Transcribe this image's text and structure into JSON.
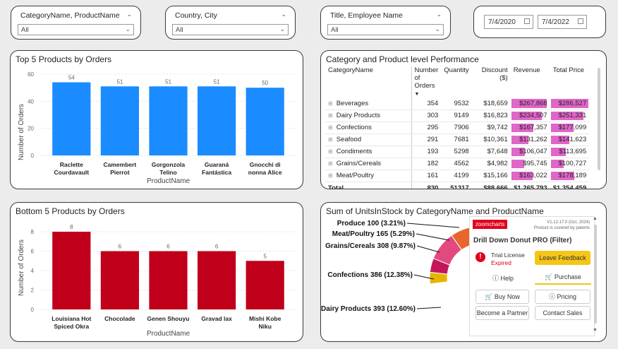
{
  "slicers": [
    {
      "label": "CategoryName, ProductName",
      "value": "All"
    },
    {
      "label": "Country, City",
      "value": "All"
    },
    {
      "label": "Title, Employee Name",
      "value": "All"
    }
  ],
  "dates": {
    "start": "7/4/2020",
    "end": "7/4/2022"
  },
  "top5": {
    "title": "Top 5 Products by Orders",
    "ylabel": "Number of Orders",
    "xlabel": "ProductName",
    "color": "#1a8cff",
    "ticks": [
      "60",
      "40",
      "20",
      "0"
    ],
    "labels": [
      [
        "Raclette",
        "Courdavault"
      ],
      [
        "Camembert",
        "Pierrot"
      ],
      [
        "Gorgonzola",
        "Telino"
      ],
      [
        "Guaraná",
        "Fantástica"
      ],
      [
        "Gnocchi di",
        "nonna Alice"
      ]
    ],
    "value_labels": [
      "54",
      "51",
      "51",
      "51",
      "50"
    ]
  },
  "bottom5": {
    "title": "Bottom 5 Products by Orders",
    "ylabel": "Number of Orders",
    "xlabel": "ProductName",
    "color": "#c0001a",
    "ticks": [
      "8",
      "6",
      "4",
      "2",
      "0"
    ],
    "labels": [
      [
        "Louisiana Hot",
        "Spiced Okra"
      ],
      [
        "Chocolade"
      ],
      [
        "Genen Shouyu"
      ],
      [
        "Gravad lax"
      ],
      [
        "Mishi Kobe",
        "Niku"
      ]
    ],
    "value_labels": [
      "8",
      "6",
      "6",
      "6",
      "5"
    ]
  },
  "chart_data": [
    {
      "type": "bar",
      "title": "Top 5 Products by Orders",
      "xlabel": "ProductName",
      "ylabel": "Number of Orders",
      "categories": [
        "Raclette Courdavault",
        "Camembert Pierrot",
        "Gorgonzola Telino",
        "Guaraná Fantástica",
        "Gnocchi di nonna Alice"
      ],
      "values": [
        54,
        51,
        51,
        51,
        50
      ],
      "ylim": [
        0,
        60
      ],
      "grid": true
    },
    {
      "type": "bar",
      "title": "Bottom 5 Products by Orders",
      "xlabel": "ProductName",
      "ylabel": "Number of Orders",
      "categories": [
        "Louisiana Hot Spiced Okra",
        "Chocolade",
        "Genen Shouyu",
        "Gravad lax",
        "Mishi Kobe Niku"
      ],
      "values": [
        8,
        6,
        6,
        6,
        5
      ],
      "ylim": [
        0,
        8
      ],
      "grid": true
    },
    {
      "type": "pie",
      "title": "Sum of UnitsInStock by CategoryName and ProductName",
      "categories": [
        "Produce",
        "Meat/Poultry",
        "Grains/Cereals",
        "Confections",
        "Dairy Products"
      ],
      "values": [
        100,
        165,
        308,
        386,
        393
      ],
      "labels": [
        "Produce 100 (3.21%)",
        "Meat/Poultry 165 (5.29%)",
        "Grains/Cereals 308 (9.87%)",
        "Confections 386 (12.38%)",
        "Dairy Products 393 (12.60%)"
      ]
    }
  ],
  "matrix": {
    "title": "Category and Product level Performance",
    "headers": [
      "CategoryName",
      "Number of Orders",
      "Quantity",
      "Discount ($)",
      "Revenue",
      "Total Price"
    ],
    "rows": [
      [
        "Beverages",
        "354",
        "9532",
        "$18,659",
        "$267,868",
        "$286,527"
      ],
      [
        "Dairy Products",
        "303",
        "9149",
        "$16,823",
        "$234,507",
        "$251,331"
      ],
      [
        "Confections",
        "295",
        "7906",
        "$9,742",
        "$167,357",
        "$177,099"
      ],
      [
        "Seafood",
        "291",
        "7681",
        "$10,361",
        "$131,262",
        "$141,623"
      ],
      [
        "Condiments",
        "193",
        "5298",
        "$7,648",
        "$106,047",
        "$113,695"
      ],
      [
        "Grains/Cereals",
        "182",
        "4562",
        "$4,982",
        "$95,745",
        "$100,727"
      ],
      [
        "Meat/Poultry",
        "161",
        "4199",
        "$15,166",
        "$163,022",
        "$178,189"
      ]
    ],
    "total": [
      "Total",
      "830",
      "51317",
      "$88,666",
      "$1,265,793",
      "$1,354,459"
    ],
    "bar_color": "#e066c8"
  },
  "donut": {
    "title": "Sum of UnitsInStock by CategoryName and ProductName",
    "colors": [
      "#e8b400",
      "#c2185b",
      "#e2497f",
      "#e8662b",
      "#7b1fa2",
      "#1a237e"
    ]
  },
  "zoomcharts": {
    "brand": "zoomcharts",
    "version": "V1.12.17.0 (Oct, 2024)",
    "patent": "Product is covered by patents",
    "product": "Drill Down Donut PRO (Filter)",
    "license_line1": "Trial License",
    "license_line2": "Expired",
    "feedback": "Leave Feedback",
    "help": "Help",
    "purchase": "Purchase",
    "buy": "Buy Now",
    "pricing": "Pricing",
    "partner": "Become a Partner",
    "sales": "Contact Sales"
  }
}
